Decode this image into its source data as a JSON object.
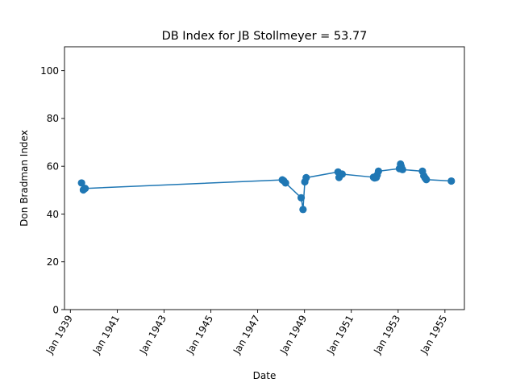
{
  "chart_data": {
    "type": "line",
    "title": "DB Index for JB Stollmeyer = 53.77",
    "xlabel": "Date",
    "ylabel": "Don Bradman Index",
    "ylim": [
      0,
      110
    ],
    "xlim": [
      "1938-10-01",
      "1955-11-01"
    ],
    "yticks": [
      0,
      20,
      40,
      60,
      80,
      100
    ],
    "xticks": [
      {
        "date": "1939-01-01",
        "label": "Jan 1939"
      },
      {
        "date": "1941-01-01",
        "label": "Jan 1941"
      },
      {
        "date": "1943-01-01",
        "label": "Jan 1943"
      },
      {
        "date": "1945-01-01",
        "label": "Jan 1945"
      },
      {
        "date": "1947-01-01",
        "label": "Jan 1947"
      },
      {
        "date": "1949-01-01",
        "label": "Jan 1949"
      },
      {
        "date": "1951-01-01",
        "label": "Jan 1951"
      },
      {
        "date": "1953-01-01",
        "label": "Jan 1953"
      },
      {
        "date": "1955-01-01",
        "label": "Jan 1955"
      }
    ],
    "grid": false,
    "color": "#1f77b4",
    "marker": "circle",
    "series": [
      {
        "points": [
          {
            "x": "1939-06-24",
            "y": 53.0
          },
          {
            "x": "1939-07-22",
            "y": 50.1
          },
          {
            "x": "1939-08-19",
            "y": 50.7
          },
          {
            "x": "1948-01-21",
            "y": 54.3
          },
          {
            "x": "1948-02-11",
            "y": 53.9
          },
          {
            "x": "1948-03-11",
            "y": 53.0
          },
          {
            "x": "1948-11-10",
            "y": 46.8
          },
          {
            "x": "1948-12-09",
            "y": 41.9
          },
          {
            "x": "1949-01-06",
            "y": 53.5
          },
          {
            "x": "1949-01-27",
            "y": 55.2
          },
          {
            "x": "1950-06-08",
            "y": 57.6
          },
          {
            "x": "1950-06-24",
            "y": 55.3
          },
          {
            "x": "1950-07-20",
            "y": 56.5
          },
          {
            "x": "1950-08-12",
            "y": 56.7
          },
          {
            "x": "1951-12-14",
            "y": 55.4
          },
          {
            "x": "1951-12-31",
            "y": 55.1
          },
          {
            "x": "1952-01-25",
            "y": 55.3
          },
          {
            "x": "1952-02-09",
            "y": 56.3
          },
          {
            "x": "1952-02-29",
            "y": 57.9
          },
          {
            "x": "1953-01-21",
            "y": 59.0
          },
          {
            "x": "1953-02-07",
            "y": 60.9
          },
          {
            "x": "1953-02-19",
            "y": 59.9
          },
          {
            "x": "1953-03-11",
            "y": 58.6
          },
          {
            "x": "1954-01-15",
            "y": 57.9
          },
          {
            "x": "1954-02-05",
            "y": 56.0
          },
          {
            "x": "1954-02-26",
            "y": 55.1
          },
          {
            "x": "1954-03-17",
            "y": 54.4
          },
          {
            "x": "1955-04-11",
            "y": 53.8
          }
        ]
      }
    ]
  }
}
